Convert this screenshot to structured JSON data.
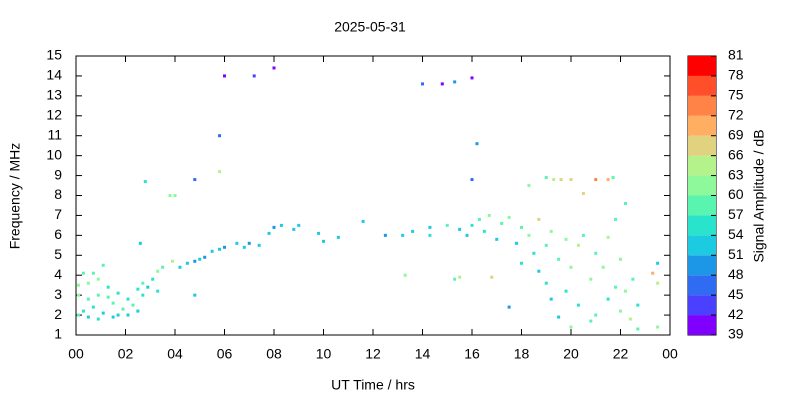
{
  "chart_data": {
    "type": "scatter",
    "title": "2025-05-31",
    "x_label": "UT Time / hrs",
    "y_label": "Frequency / MHz",
    "colorbar_label": "Signal Amplitude / dB",
    "xlim": [
      0,
      24
    ],
    "xticks": [
      {
        "value": 0,
        "label": "00"
      },
      {
        "value": 2,
        "label": "02"
      },
      {
        "value": 4,
        "label": "04"
      },
      {
        "value": 6,
        "label": "06"
      },
      {
        "value": 8,
        "label": "08"
      },
      10,
      12,
      14,
      16,
      18,
      20,
      22,
      {
        "value": 24,
        "label": "00"
      }
    ],
    "ylim": [
      1,
      15
    ],
    "yticks": [
      1,
      2,
      3,
      4,
      5,
      6,
      7,
      8,
      9,
      10,
      11,
      12,
      13,
      14,
      15
    ],
    "cblim": [
      39,
      81
    ],
    "cbticks": [
      39,
      42,
      45,
      48,
      51,
      54,
      57,
      60,
      63,
      66,
      69,
      72,
      75,
      78,
      81
    ],
    "colors": [
      "#7f00ff",
      "#4a40ff",
      "#2f6cf2",
      "#1c96e6",
      "#1ccbe2",
      "#2ae3cc",
      "#58f4b0",
      "#8ef99a",
      "#b4f28c",
      "#e0d27e",
      "#ffae62",
      "#ff8246",
      "#ff4f2a",
      "#ff0000"
    ],
    "x": [
      0.1,
      0.1,
      0.1,
      0.3,
      0.3,
      0.5,
      0.5,
      0.5,
      0.7,
      0.7,
      0.9,
      0.9,
      0.9,
      1.1,
      1.1,
      1.3,
      1.3,
      1.5,
      1.5,
      1.7,
      1.7,
      1.9,
      2.1,
      2.1,
      2.3,
      2.5,
      2.5,
      2.7,
      2.7,
      2.9,
      3.1,
      3.3,
      3.3,
      2.8,
      2.6,
      3.5,
      3.9,
      3.8,
      4.0,
      4.2,
      4.5,
      4.8,
      4.8,
      4.8,
      5.0,
      5.2,
      5.5,
      5.8,
      5.8,
      5.8,
      6.0,
      6.0,
      6.5,
      6.8,
      7.0,
      7.2,
      7.4,
      7.8,
      8.0,
      8.0,
      8.3,
      8.8,
      9.0,
      9.8,
      10.0,
      10.6,
      11.6,
      12.5,
      13.2,
      13.3,
      13.6,
      14.0,
      14.3,
      14.3,
      14.8,
      15.0,
      15.3,
      15.3,
      15.5,
      15.5,
      15.8,
      16.0,
      16.0,
      16.0,
      16.2,
      16.3,
      16.5,
      16.7,
      16.8,
      17.0,
      17.2,
      17.5,
      17.5,
      17.8,
      18.0,
      18.0,
      18.3,
      18.3,
      18.5,
      18.7,
      18.7,
      19.0,
      19.0,
      19.0,
      19.2,
      19.2,
      19.3,
      19.5,
      19.5,
      19.6,
      19.8,
      19.8,
      20.0,
      20.0,
      20.0,
      20.3,
      20.3,
      20.5,
      20.5,
      20.8,
      21.0,
      21.0,
      21.0,
      21.3,
      21.5,
      21.5,
      21.5,
      21.7,
      21.8,
      21.8,
      22.0,
      22.0,
      22.2,
      22.2,
      22.4,
      22.5,
      22.7,
      22.7,
      23.5,
      23.3,
      23.5,
      23.5,
      20.8
    ],
    "values": [
      2.0,
      3.0,
      3.5,
      2.2,
      4.1,
      1.9,
      2.8,
      3.6,
      2.4,
      4.1,
      1.8,
      3.0,
      3.8,
      2.1,
      4.5,
      2.9,
      3.4,
      1.9,
      2.6,
      2.0,
      3.1,
      2.3,
      2.0,
      2.8,
      2.5,
      2.2,
      3.3,
      3.0,
      3.6,
      3.4,
      3.8,
      4.2,
      3.2,
      8.7,
      5.6,
      4.4,
      4.7,
      8.0,
      8.0,
      4.4,
      4.6,
      4.7,
      3.0,
      8.8,
      4.8,
      4.9,
      5.2,
      5.3,
      9.2,
      11.0,
      14.0,
      5.4,
      5.6,
      5.4,
      5.6,
      14.0,
      5.5,
      6.1,
      6.4,
      14.4,
      6.5,
      6.3,
      6.5,
      6.1,
      5.7,
      5.9,
      6.7,
      6.0,
      6.0,
      4.0,
      6.2,
      13.6,
      6.4,
      6.0,
      13.6,
      6.5,
      13.7,
      3.8,
      6.3,
      3.9,
      6.0,
      13.9,
      8.8,
      6.5,
      10.6,
      6.8,
      6.2,
      7.0,
      3.9,
      5.8,
      6.6,
      6.9,
      2.4,
      5.6,
      6.4,
      4.6,
      8.5,
      6.0,
      5.1,
      6.8,
      4.2,
      5.5,
      3.6,
      8.9,
      6.2,
      2.8,
      8.8,
      4.8,
      1.9,
      8.8,
      5.8,
      3.2,
      8.8,
      4.4,
      1.4,
      5.5,
      2.5,
      8.1,
      6.0,
      3.8,
      8.8,
      5.1,
      2.0,
      4.4,
      8.8,
      5.9,
      2.8,
      8.9,
      3.4,
      6.8,
      4.8,
      2.2,
      7.6,
      3.2,
      1.8,
      3.8,
      2.5,
      1.3,
      1.4,
      4.1,
      4.6,
      3.6,
      1.7
    ],
    "amplitude": [
      57,
      60,
      62,
      54,
      57,
      52,
      57,
      60,
      54,
      57,
      55,
      57,
      60,
      52,
      57,
      57,
      54,
      51,
      57,
      52,
      55,
      57,
      51,
      54,
      57,
      52,
      55,
      54,
      57,
      52,
      55,
      60,
      54,
      54,
      51,
      57,
      63,
      60,
      60,
      52,
      51,
      50,
      51,
      45,
      51,
      49,
      51,
      51,
      63,
      45,
      40,
      48,
      51,
      51,
      48,
      43,
      51,
      51,
      48,
      40,
      51,
      51,
      51,
      52,
      51,
      51,
      51,
      48,
      51,
      62,
      51,
      45,
      51,
      54,
      40,
      57,
      48,
      57,
      52,
      63,
      51,
      40,
      45,
      54,
      48,
      57,
      54,
      60,
      66,
      51,
      57,
      60,
      48,
      52,
      57,
      54,
      62,
      60,
      54,
      66,
      51,
      57,
      54,
      57,
      60,
      51,
      63,
      57,
      52,
      66,
      60,
      54,
      66,
      60,
      62,
      63,
      54,
      66,
      57,
      60,
      72,
      57,
      57,
      60,
      69,
      63,
      54,
      57,
      57,
      57,
      60,
      62,
      57,
      60,
      63,
      57,
      54,
      57,
      60,
      69,
      51,
      63,
      57
    ]
  }
}
